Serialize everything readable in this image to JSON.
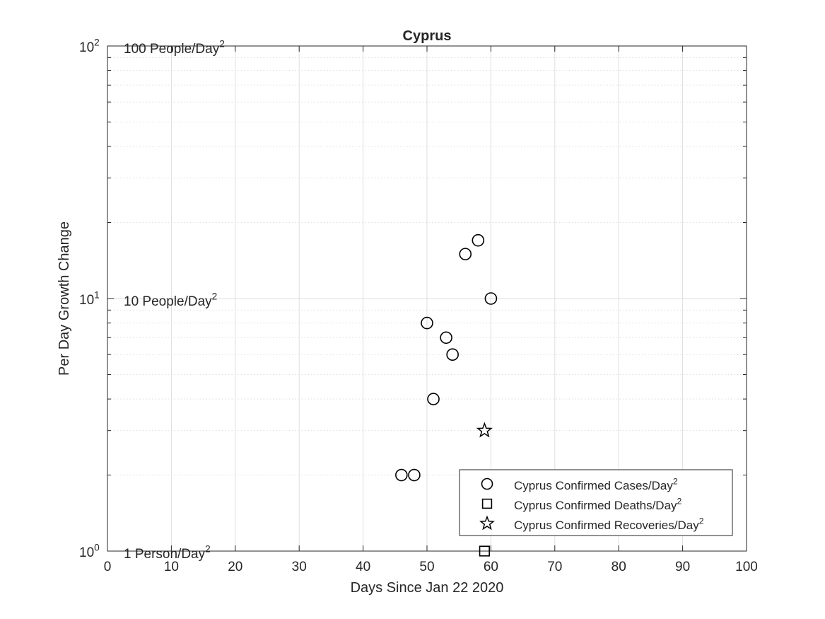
{
  "chart_data": {
    "type": "scatter",
    "title": "Cyprus",
    "xlabel": "Days Since Jan 22 2020",
    "ylabel": "Per Day Growth Change",
    "xlim": [
      0,
      100
    ],
    "ylim": [
      1,
      100
    ],
    "yscale": "log",
    "grid": true,
    "legend_position": "bottom-right",
    "x_ticks": [
      0,
      10,
      20,
      30,
      40,
      50,
      60,
      70,
      80,
      90,
      100
    ],
    "y_ticks": [
      {
        "value": 1,
        "base": "10",
        "exp": "0"
      },
      {
        "value": 10,
        "base": "10",
        "exp": "1"
      },
      {
        "value": 100,
        "base": "10",
        "exp": "2"
      }
    ],
    "reference_labels": [
      {
        "value": 100,
        "text": "100 People/Day",
        "sup": "2"
      },
      {
        "value": 10,
        "text": "10 People/Day",
        "sup": "2"
      },
      {
        "value": 1,
        "text": "1 Person/Day",
        "sup": "2"
      }
    ],
    "series": [
      {
        "name": "Cyprus Confirmed Cases/Day",
        "name_sup": "2",
        "marker": "circle",
        "points": [
          {
            "x": 46,
            "y": 2
          },
          {
            "x": 48,
            "y": 2
          },
          {
            "x": 50,
            "y": 8
          },
          {
            "x": 51,
            "y": 4
          },
          {
            "x": 53,
            "y": 7
          },
          {
            "x": 54,
            "y": 6
          },
          {
            "x": 56,
            "y": 15
          },
          {
            "x": 58,
            "y": 17
          },
          {
            "x": 60,
            "y": 10
          }
        ]
      },
      {
        "name": "Cyprus Confirmed Deaths/Day",
        "name_sup": "2",
        "marker": "square",
        "points": [
          {
            "x": 59,
            "y": 1
          }
        ]
      },
      {
        "name": "Cyprus Confirmed Recoveries/Day",
        "name_sup": "2",
        "marker": "star",
        "points": [
          {
            "x": 59,
            "y": 3
          }
        ]
      }
    ]
  }
}
